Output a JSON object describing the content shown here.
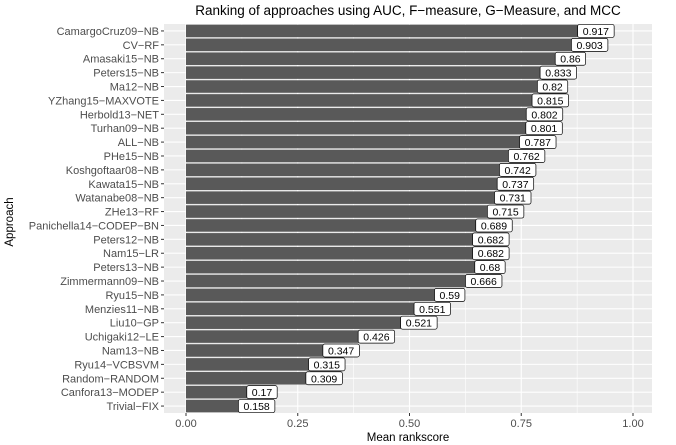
{
  "chart_data": {
    "type": "bar",
    "orientation": "horizontal",
    "title": "Ranking of approaches using AUC, F−measure, G−Measure, and MCC",
    "xlabel": "Mean rankscore",
    "ylabel": "Approach",
    "xlim": [
      0,
      1
    ],
    "xticks": [
      "0.00",
      "0.25",
      "0.50",
      "0.75",
      "1.00"
    ],
    "grid": true,
    "bar_color": "#595959",
    "panel_color": "#ebebeb",
    "categories": [
      "CamargoCruz09−NB",
      "CV−RF",
      "Amasaki15−NB",
      "Peters15−NB",
      "Ma12−NB",
      "YZhang15−MAXVOTE",
      "Herbold13−NET",
      "Turhan09−NB",
      "ALL−NB",
      "PHe15−NB",
      "Koshgoftaar08−NB",
      "Kawata15−NB",
      "Watanabe08−NB",
      "ZHe13−RF",
      "Panichella14−CODEP−BN",
      "Peters12−NB",
      "Nam15−LR",
      "Peters13−NB",
      "Zimmermann09−NB",
      "Ryu15−NB",
      "Menzies11−NB",
      "Liu10−GP",
      "Uchigaki12−LE",
      "Nam13−NB",
      "Ryu14−VCBSVM",
      "Random−RANDOM",
      "Canfora13−MODEP",
      "Trivial−FIX"
    ],
    "values": [
      0.917,
      0.903,
      0.86,
      0.833,
      0.82,
      0.815,
      0.802,
      0.801,
      0.787,
      0.762,
      0.742,
      0.737,
      0.731,
      0.715,
      0.689,
      0.682,
      0.682,
      0.68,
      0.666,
      0.59,
      0.551,
      0.521,
      0.426,
      0.347,
      0.315,
      0.309,
      0.17,
      0.158
    ],
    "value_labels": [
      "0.917",
      "0.903",
      "0.86",
      "0.833",
      "0.82",
      "0.815",
      "0.802",
      "0.801",
      "0.787",
      "0.762",
      "0.742",
      "0.737",
      "0.731",
      "0.715",
      "0.689",
      "0.682",
      "0.682",
      "0.68",
      "0.666",
      "0.59",
      "0.551",
      "0.521",
      "0.426",
      "0.347",
      "0.315",
      "0.309",
      "0.17",
      "0.158"
    ]
  }
}
